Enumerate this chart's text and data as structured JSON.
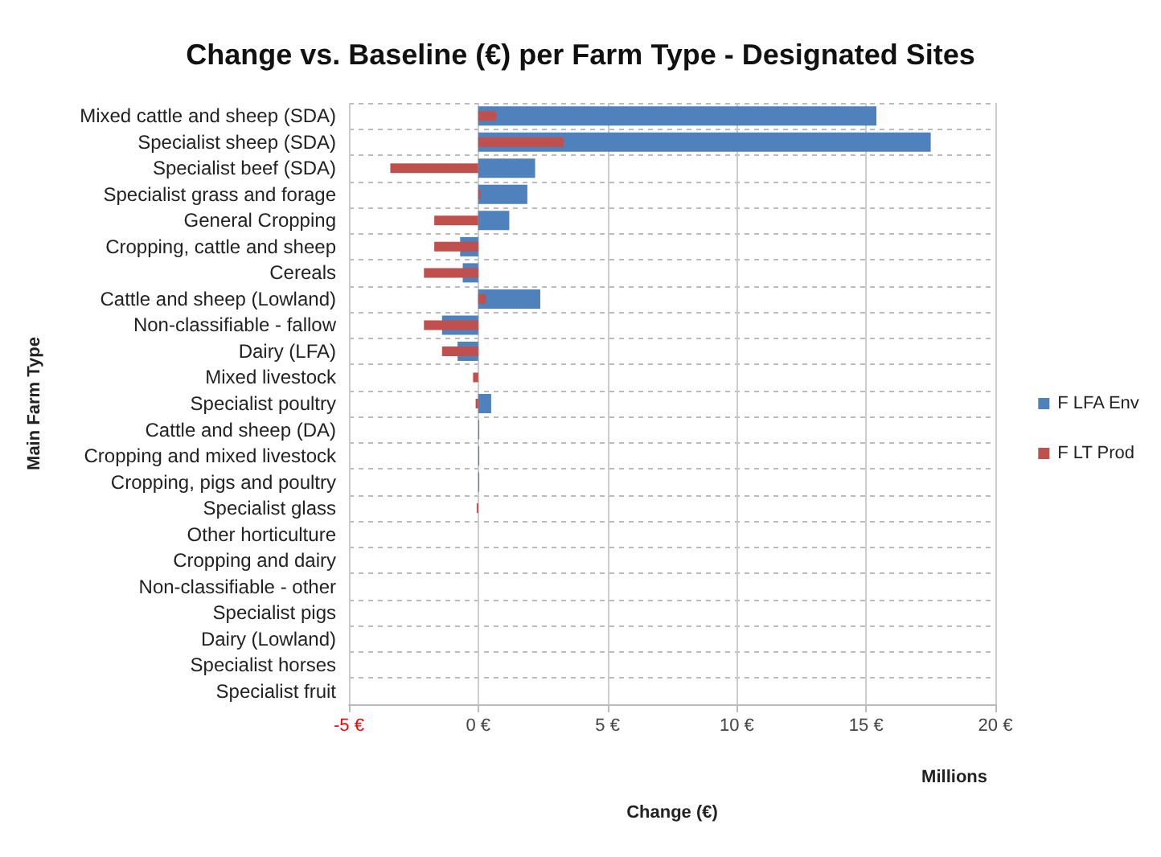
{
  "chart_data": {
    "type": "bar",
    "orientation": "horizontal",
    "title": "Change vs. Baseline (€) per Farm Type - Designated Sites",
    "xlabel": "Change (€)",
    "ylabel": "Main Farm Type",
    "categories": [
      "Mixed cattle and sheep (SDA)",
      "Specialist sheep (SDA)",
      "Specialist beef (SDA)",
      "Specialist grass and forage",
      "General Cropping",
      "Cropping, cattle and sheep",
      "Cereals",
      "Cattle and sheep (Lowland)",
      "Non-classifiable - fallow",
      "Dairy (LFA)",
      "Mixed livestock",
      "Specialist poultry",
      "Cattle and sheep (DA)",
      "Cropping and mixed livestock",
      "Cropping, pigs and poultry",
      "Specialist glass",
      "Other horticulture",
      "Cropping and dairy",
      "Non-classifiable - other",
      "Specialist pigs",
      "Dairy (Lowland)",
      "Specialist horses",
      "Specialist fruit"
    ],
    "series": [
      {
        "name": "F LFA Env",
        "color": "#4f81bd",
        "values": [
          15.4,
          17.5,
          2.2,
          1.9,
          1.2,
          -0.7,
          -0.6,
          2.4,
          -1.4,
          -0.8,
          0,
          0.5,
          0.04,
          0.04,
          0.04,
          0,
          0,
          0,
          0,
          0,
          0,
          0,
          0
        ]
      },
      {
        "name": "F LT Prod",
        "color": "#c0504d",
        "values": [
          0.7,
          3.3,
          -3.4,
          0.1,
          -1.7,
          -1.7,
          -2.1,
          0.3,
          -2.1,
          -1.4,
          -0.2,
          -0.1,
          0,
          0,
          0,
          -0.06,
          0,
          0,
          0,
          0,
          0,
          0,
          0
        ]
      }
    ],
    "xlim": [
      -5,
      20
    ],
    "xticks": [
      {
        "value": -5,
        "label": "-5 €"
      },
      {
        "value": 0,
        "label": "0 €"
      },
      {
        "value": 5,
        "label": "5 €"
      },
      {
        "value": 10,
        "label": "10 €"
      },
      {
        "value": 15,
        "label": "15 €"
      },
      {
        "value": 20,
        "label": "20 €"
      }
    ],
    "annotations": [
      "Millions"
    ],
    "grid": true,
    "legend": "right"
  }
}
